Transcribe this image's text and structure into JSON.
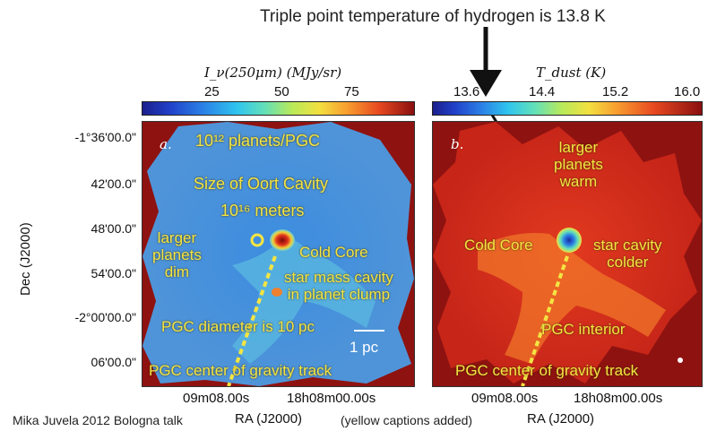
{
  "top_annotation": "Triple point temperature of  hydrogen is 13.8 K",
  "left_colorbar": {
    "title": "I_ν(250μm) (MJy/sr)",
    "ticks": [
      "25",
      "50",
      "75"
    ]
  },
  "right_colorbar": {
    "title": "T_dust (K)",
    "ticks": [
      "13.6",
      "14.4",
      "15.2",
      "16.0"
    ]
  },
  "y_axis": {
    "label": "Dec (J2000)",
    "ticks": [
      "-1°36'00.0\"",
      "42'00.0\"",
      "48'00.0\"",
      "54'00.0\"",
      "-2°00'00.0\"",
      "06'00.0\""
    ]
  },
  "x_axis": {
    "label_left": "RA (J2000)",
    "label_right": "RA (J2000)",
    "left_ticks": [
      "09m08.00s",
      "18h08m00.00s"
    ],
    "right_ticks": [
      "09m08.00s",
      "18h08m00.00s"
    ]
  },
  "panel_a": {
    "letter": "a.",
    "captions": {
      "planets": "10¹² planets/PGC",
      "oort": "Size of Oort Cavity",
      "meters": "10¹⁶ meters",
      "larger": "larger\nplanets\ndim",
      "cold_core": "Cold Core",
      "star_mass": "star mass cavity\nin planet clump",
      "diameter": "PGC diameter is 10 pc",
      "scale": "1 pc",
      "track": "PGC center of gravity track"
    }
  },
  "panel_b": {
    "letter": "b.",
    "captions": {
      "larger": "larger\nplanets\nwarm",
      "cold_core": "Cold Core",
      "star_cavity": "star cavity\ncolder",
      "interior": "PGC interior",
      "track": "PGC center of gravity track"
    }
  },
  "footer": {
    "credit": "Mika Juvela 2012 Bologna talk",
    "note": "(yellow captions added)"
  }
}
